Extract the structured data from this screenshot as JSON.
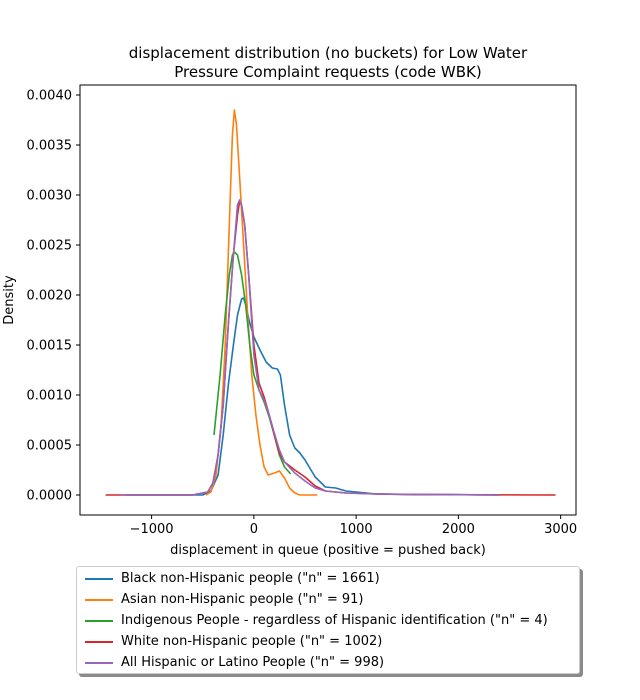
{
  "chart_data": {
    "type": "line",
    "title_lines": [
      "displacement distribution (no buckets)  for Low Water",
      "Pressure Complaint requests (code WBK)"
    ],
    "xlabel": "displacement in queue (positive = pushed back)",
    "ylabel": "Density",
    "xlim": [
      -1700,
      3150
    ],
    "ylim": [
      -0.0002,
      0.0041
    ],
    "x_ticks": [
      -1000,
      0,
      1000,
      2000,
      3000
    ],
    "x_tick_labels": [
      "−1000",
      "0",
      "1000",
      "2000",
      "3000"
    ],
    "y_ticks": [
      0.0,
      0.0005,
      0.001,
      0.0015,
      0.002,
      0.0025,
      0.003,
      0.0035,
      0.004
    ],
    "y_tick_labels": [
      "0.0000",
      "0.0005",
      "0.0010",
      "0.0015",
      "0.0020",
      "0.0025",
      "0.0030",
      "0.0035",
      "0.0040"
    ],
    "grid": false,
    "legend_position": "below",
    "series": [
      {
        "name": "Black non-Hispanic people (\"n\" = 1661)",
        "color": "#1f77b4",
        "points": [
          [
            -1250,
            0
          ],
          [
            -500,
            0
          ],
          [
            -420,
            4e-05
          ],
          [
            -350,
            0.0002
          ],
          [
            -300,
            0.0006
          ],
          [
            -250,
            0.0011
          ],
          [
            -200,
            0.0015
          ],
          [
            -160,
            0.0018
          ],
          [
            -120,
            0.00196
          ],
          [
            -100,
            0.00197
          ],
          [
            -80,
            0.0019
          ],
          [
            -40,
            0.00172
          ],
          [
            0,
            0.00158
          ],
          [
            60,
            0.00145
          ],
          [
            120,
            0.00133
          ],
          [
            180,
            0.00127
          ],
          [
            230,
            0.00126
          ],
          [
            260,
            0.0012
          ],
          [
            300,
            0.0009
          ],
          [
            350,
            0.0006
          ],
          [
            400,
            0.00047
          ],
          [
            450,
            0.00042
          ],
          [
            500,
            0.00035
          ],
          [
            600,
            0.00018
          ],
          [
            700,
            8e-05
          ],
          [
            800,
            7e-05
          ],
          [
            900,
            4e-05
          ],
          [
            1000,
            3e-05
          ],
          [
            1200,
            1e-05
          ],
          [
            1500,
            5e-06
          ],
          [
            2000,
            3e-06
          ],
          [
            2400,
            0
          ]
        ]
      },
      {
        "name": "Asian non-Hispanic people (\"n\" = 91)",
        "color": "#ff7f0e",
        "points": [
          [
            -470,
            0
          ],
          [
            -420,
            3e-05
          ],
          [
            -370,
            0.0002
          ],
          [
            -320,
            0.0007
          ],
          [
            -280,
            0.0015
          ],
          [
            -240,
            0.0027
          ],
          [
            -210,
            0.0036
          ],
          [
            -190,
            0.00385
          ],
          [
            -170,
            0.0037
          ],
          [
            -140,
            0.0032
          ],
          [
            -100,
            0.0025
          ],
          [
            -60,
            0.0018
          ],
          [
            -20,
            0.0012
          ],
          [
            20,
            0.0008
          ],
          [
            60,
            0.0005
          ],
          [
            100,
            0.00028
          ],
          [
            140,
            0.0002
          ],
          [
            200,
            0.00022
          ],
          [
            250,
            0.00024
          ],
          [
            300,
            0.00017
          ],
          [
            350,
            7e-05
          ],
          [
            400,
            2e-05
          ],
          [
            450,
            0
          ],
          [
            620,
            0
          ]
        ]
      },
      {
        "name": "Indigenous People - regardless of Hispanic identification (\"n\" = 4)",
        "color": "#2ca02c",
        "points": [
          [
            -390,
            0.0006
          ],
          [
            -330,
            0.0012
          ],
          [
            -280,
            0.0018
          ],
          [
            -240,
            0.0022
          ],
          [
            -210,
            0.0024
          ],
          [
            -190,
            0.00243
          ],
          [
            -160,
            0.0024
          ],
          [
            -120,
            0.0022
          ],
          [
            -80,
            0.0019
          ],
          [
            -40,
            0.0015
          ],
          [
            0,
            0.0012
          ],
          [
            50,
            0.00105
          ],
          [
            100,
            0.00093
          ],
          [
            150,
            0.00078
          ],
          [
            200,
            0.0006
          ],
          [
            250,
            0.0004
          ],
          [
            300,
            0.00028
          ],
          [
            360,
            0.00021
          ]
        ]
      },
      {
        "name": "White non-Hispanic people (\"n\" = 1002)",
        "color": "#d62728",
        "points": [
          [
            -1450,
            0
          ],
          [
            -600,
            0
          ],
          [
            -450,
            3e-05
          ],
          [
            -400,
            0.00012
          ],
          [
            -350,
            0.0004
          ],
          [
            -300,
            0.0009
          ],
          [
            -250,
            0.0017
          ],
          [
            -200,
            0.0024
          ],
          [
            -160,
            0.0028
          ],
          [
            -140,
            0.00293
          ],
          [
            -120,
            0.0029
          ],
          [
            -90,
            0.0027
          ],
          [
            -50,
            0.0022
          ],
          [
            0,
            0.0015
          ],
          [
            50,
            0.00112
          ],
          [
            100,
            0.00098
          ],
          [
            150,
            0.0008
          ],
          [
            200,
            0.0006
          ],
          [
            250,
            0.00042
          ],
          [
            300,
            0.00033
          ],
          [
            400,
            0.00025
          ],
          [
            500,
            0.00018
          ],
          [
            600,
            9e-05
          ],
          [
            700,
            4e-05
          ],
          [
            900,
            2e-05
          ],
          [
            1200,
            1e-05
          ],
          [
            1600,
            4e-06
          ],
          [
            1850,
            5e-06
          ],
          [
            2200,
            2e-06
          ],
          [
            2950,
            0
          ]
        ]
      },
      {
        "name": "All Hispanic or Latino People (\"n\" = 998)",
        "color": "#9467bd",
        "points": [
          [
            -1300,
            0
          ],
          [
            -600,
            0
          ],
          [
            -450,
            3e-05
          ],
          [
            -400,
            0.00012
          ],
          [
            -350,
            0.0004
          ],
          [
            -300,
            0.0009
          ],
          [
            -250,
            0.0017
          ],
          [
            -200,
            0.0024
          ],
          [
            -160,
            0.0029
          ],
          [
            -140,
            0.00295
          ],
          [
            -120,
            0.0029
          ],
          [
            -90,
            0.0027
          ],
          [
            -50,
            0.0022
          ],
          [
            0,
            0.0014
          ],
          [
            50,
            0.00105
          ],
          [
            100,
            0.00095
          ],
          [
            150,
            0.0008
          ],
          [
            200,
            0.00062
          ],
          [
            250,
            0.00045
          ],
          [
            300,
            0.00033
          ],
          [
            400,
            0.00022
          ],
          [
            500,
            0.00014
          ],
          [
            600,
            7e-05
          ],
          [
            700,
            4e-05
          ],
          [
            900,
            2e-05
          ],
          [
            1200,
            1e-05
          ],
          [
            1700,
            5e-06
          ],
          [
            2400,
            0
          ]
        ]
      }
    ]
  }
}
